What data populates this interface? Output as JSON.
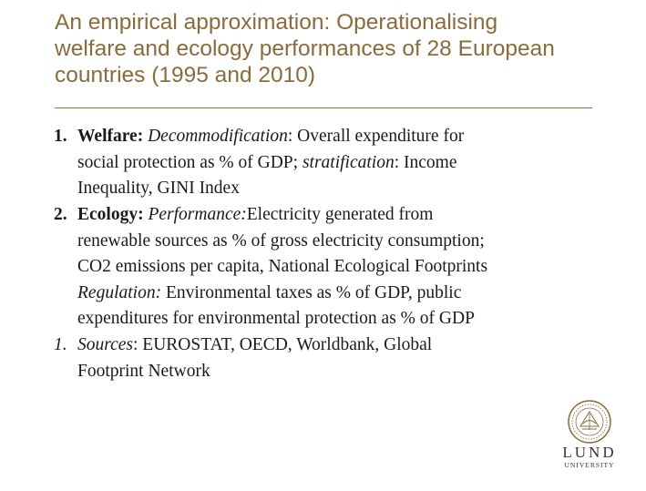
{
  "title": {
    "lines": [
      "An empirical approximation: Operationalising",
      "welfare and ecology performances of 28 European",
      "countries (1995 and 2010)"
    ]
  },
  "items": [
    {
      "number": "1.",
      "lines": [
        [
          {
            "t": "Welfare: ",
            "s": "b"
          },
          {
            "t": "Decommodification",
            "s": "i"
          },
          {
            "t": ": Overall expenditure for",
            "s": ""
          }
        ],
        [
          {
            "t": "social protection as % of GDP; ",
            "s": ""
          },
          {
            "t": "stratification",
            "s": "i"
          },
          {
            "t": ": Income",
            "s": ""
          }
        ],
        [
          {
            "t": "Inequality, GINI Index",
            "s": ""
          }
        ]
      ]
    },
    {
      "number": "2.",
      "lines": [
        [
          {
            "t": "Ecology: ",
            "s": "b"
          },
          {
            "t": "Performance:",
            "s": "i"
          },
          {
            "t": "Electricity generated from",
            "s": ""
          }
        ],
        [
          {
            "t": "renewable sources as % of gross electricity consumption;",
            "s": ""
          }
        ],
        [
          {
            "t": "CO2 emissions per capita, National Ecological Footprints",
            "s": ""
          }
        ],
        [
          {
            "t": "Regulation:",
            "s": "i"
          },
          {
            "t": " Environmental taxes as % of GDP, public",
            "s": ""
          }
        ],
        [
          {
            "t": "expenditures for environmental protection as % of GDP",
            "s": ""
          }
        ]
      ]
    },
    {
      "number": "1.",
      "lines": [
        [
          {
            "t": "Sources",
            "s": "i"
          },
          {
            "t": ": EUROSTAT, OECD, Worldbank, Global",
            "s": ""
          }
        ],
        [
          {
            "t": "Footprint Network",
            "s": ""
          }
        ]
      ]
    }
  ],
  "logo": {
    "wordmark": "LUND",
    "subtitle": "University",
    "icon": "university-seal-icon",
    "color": "#8a6b3c"
  },
  "colors": {
    "title": "#8a6b3c",
    "body": "#1a1a1a",
    "rule": "#8a6b3c"
  }
}
